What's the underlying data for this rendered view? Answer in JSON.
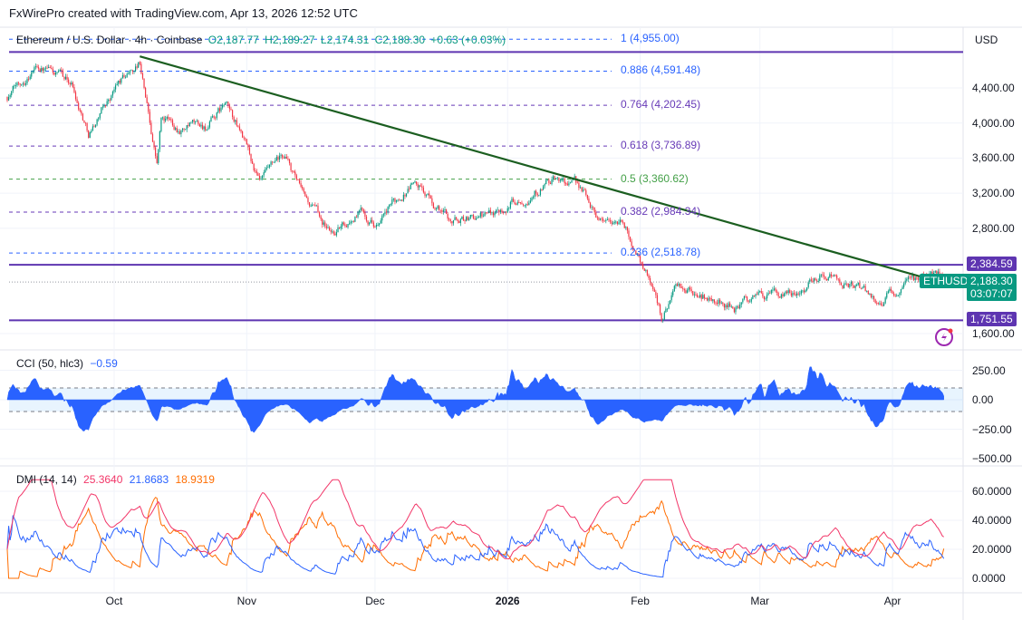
{
  "header": "FxWirePro created with TradingView.com, Apr 13, 2026 12:52 UTC",
  "legend": {
    "symbol": "Ethereum / U.S. Dollar · 4h · Coinbase",
    "open": "O2,187.77",
    "high": "H2,189.27",
    "low": "L2,174.31",
    "close": "C2,188.30",
    "change": "+0.63 (+0.03%)"
  },
  "currency": "USD",
  "price_axis": [
    "4,400.00",
    "4,000.00",
    "3,600.00",
    "3,200.00",
    "2,800.00",
    "1,600.00"
  ],
  "price_axis_values": [
    4400,
    4000,
    3600,
    3200,
    2800,
    1600
  ],
  "time_axis": [
    {
      "label": "Oct",
      "date": "2025-10-01",
      "bold": false
    },
    {
      "label": "Nov",
      "date": "2025-11-01",
      "bold": false
    },
    {
      "label": "Dec",
      "date": "2025-12-01",
      "bold": false
    },
    {
      "label": "2026",
      "date": "2026-01-01",
      "bold": true
    },
    {
      "label": "Feb",
      "date": "2026-02-01",
      "bold": false
    },
    {
      "label": "Mar",
      "date": "2026-03-01",
      "bold": false
    },
    {
      "label": "Apr",
      "date": "2026-04-01",
      "bold": false
    }
  ],
  "last_price": {
    "symbol": "ETHUSD",
    "price": 2188.3,
    "price_label": "2,188.30",
    "countdown": "03:07:07",
    "color": "#089981"
  },
  "levels": [
    {
      "price": 2384.59,
      "label": "2,384.59",
      "color": "#5e35b1"
    },
    {
      "price": 1751.55,
      "label": "1,751.55",
      "color": "#5e35b1"
    },
    {
      "price": 4810,
      "label": "",
      "color": "#5e35b1"
    }
  ],
  "fibonacci": [
    {
      "price": 4955.0,
      "label": "1 (4,955.00)",
      "color": "#2962ff"
    },
    {
      "price": 4591.48,
      "label": "0.886 (4,591.48)",
      "color": "#2962ff"
    },
    {
      "price": 4202.45,
      "label": "0.764 (4,202.45)",
      "color": "#673ab7"
    },
    {
      "price": 3736.89,
      "label": "0.618 (3,736.89)",
      "color": "#673ab7"
    },
    {
      "price": 3360.62,
      "label": "0.5 (3,360.62)",
      "color": "#43a047"
    },
    {
      "price": 2984.34,
      "label": "0.382 (2,984.34)",
      "color": "#673ab7"
    },
    {
      "price": 2518.78,
      "label": "0.236 (2,518.78)",
      "color": "#2962ff"
    }
  ],
  "trendline": {
    "start": [
      "2025-10-07",
      4760
    ],
    "end": [
      "2026-04-09",
      2230
    ],
    "color": "#1b5e20"
  },
  "cci": {
    "title": "CCI (50, hlc3)",
    "value": "−0.59",
    "axis": [
      "250.00",
      "0.00",
      "−250.00",
      "−500.00"
    ],
    "axis_values": [
      250,
      0,
      -250,
      -500
    ],
    "color": "#2962ff"
  },
  "dmi": {
    "title": "DMI (14, 14)",
    "adx": "25.3640",
    "plus_di": "21.8683",
    "minus_di": "18.9319",
    "axis": [
      "60.0000",
      "40.0000",
      "20.0000",
      "0.0000"
    ],
    "axis_values": [
      60,
      40,
      20,
      0
    ],
    "colors": {
      "adx": "#f23668",
      "plus": "#2962ff",
      "minus": "#ff6d00"
    }
  },
  "chart_data": {
    "type": "line",
    "title": "Ethereum / U.S. Dollar · 4h · Coinbase",
    "ylabel": "USD",
    "ylim": [
      1500,
      5000
    ],
    "price_path": [
      [
        "2025-09-06",
        4300
      ],
      [
        "2025-09-13",
        4680
      ],
      [
        "2025-09-17",
        4550
      ],
      [
        "2025-09-21",
        4450
      ],
      [
        "2025-09-25",
        3900
      ],
      [
        "2025-10-02",
        4450
      ],
      [
        "2025-10-07",
        4700
      ],
      [
        "2025-10-11",
        3550
      ],
      [
        "2025-10-12",
        4050
      ],
      [
        "2025-10-16",
        3950
      ],
      [
        "2025-10-23",
        3950
      ],
      [
        "2025-10-27",
        4200
      ],
      [
        "2025-10-31",
        3850
      ],
      [
        "2025-11-04",
        3300
      ],
      [
        "2025-11-10",
        3600
      ],
      [
        "2025-11-14",
        3150
      ],
      [
        "2025-11-21",
        2750
      ],
      [
        "2025-11-28",
        3000
      ],
      [
        "2025-12-02",
        2850
      ],
      [
        "2025-12-10",
        3350
      ],
      [
        "2025-12-15",
        3050
      ],
      [
        "2025-12-19",
        2900
      ],
      [
        "2025-12-27",
        2950
      ],
      [
        "2026-01-07",
        3250
      ],
      [
        "2026-01-13",
        3350
      ],
      [
        "2026-01-18",
        3250
      ],
      [
        "2026-01-22",
        2950
      ],
      [
        "2026-01-28",
        2850
      ],
      [
        "2026-02-01",
        2450
      ],
      [
        "2026-02-04",
        2150
      ],
      [
        "2026-02-06",
        1800
      ],
      [
        "2026-02-09",
        2100
      ],
      [
        "2026-02-17",
        2000
      ],
      [
        "2026-02-24",
        1900
      ],
      [
        "2026-03-01",
        2050
      ],
      [
        "2026-03-07",
        2000
      ],
      [
        "2026-03-16",
        2330
      ],
      [
        "2026-03-22",
        2150
      ],
      [
        "2026-03-28",
        2000
      ],
      [
        "2026-04-03",
        2100
      ],
      [
        "2026-04-07",
        2200
      ],
      [
        "2026-04-10",
        2350
      ],
      [
        "2026-04-13",
        2188.3
      ]
    ],
    "up_color": "#089981",
    "down_color": "#f23645"
  }
}
